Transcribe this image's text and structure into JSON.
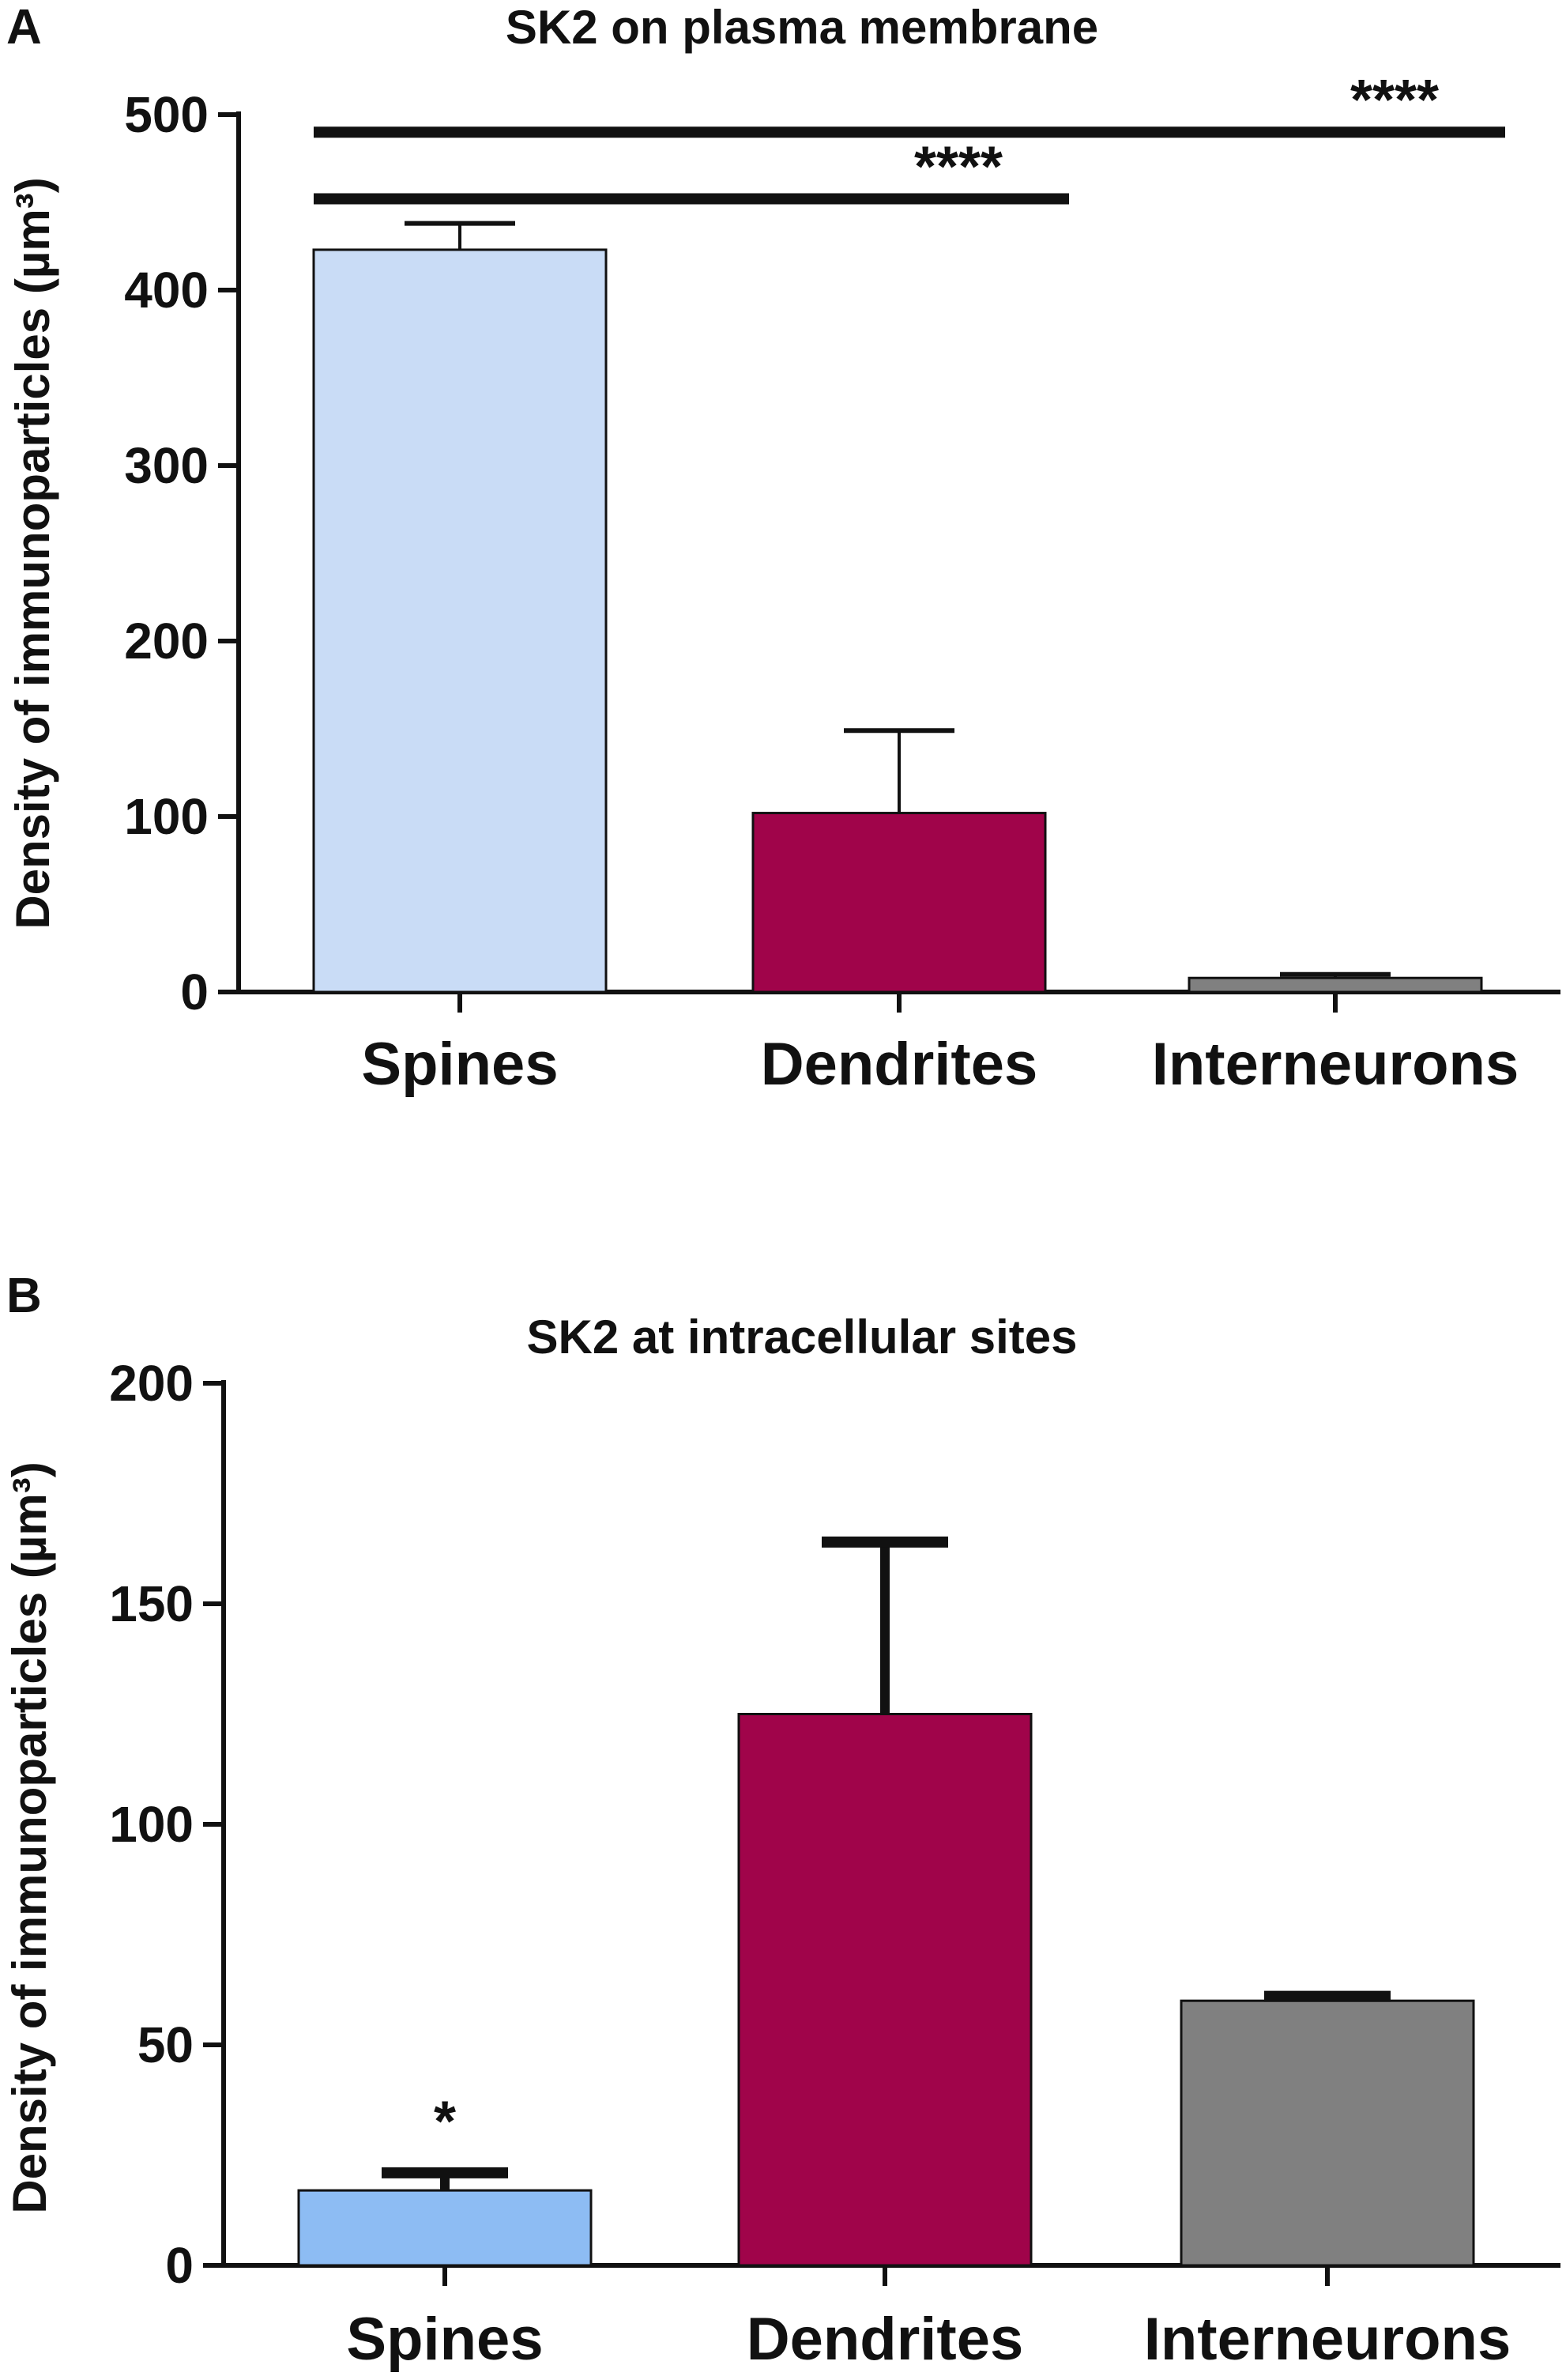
{
  "chart_data": [
    {
      "panel": "A",
      "type": "bar",
      "title": "SK2 on plasma membrane",
      "xlabel": "",
      "ylabel": "Density of immunoparticles (µm³)",
      "categories": [
        "Spines",
        "Dendrites",
        "Interneurons"
      ],
      "values": [
        423,
        102,
        8
      ],
      "errors": [
        15,
        47,
        2
      ],
      "colors": [
        "#c9dcf6",
        "#a0044a",
        "#808080"
      ],
      "ylim": [
        0,
        500
      ],
      "yticks": [
        0,
        100,
        200,
        300,
        400,
        500
      ],
      "significance": [
        {
          "from": 0,
          "to": 1,
          "y": 452,
          "label": "****"
        },
        {
          "from": 0,
          "to": 2,
          "y": 490,
          "label": "****"
        }
      ],
      "grid": false
    },
    {
      "panel": "B",
      "type": "bar",
      "title": "SK2 at intracellular sites",
      "xlabel": "",
      "ylabel": "Density of immunoparticles (µm³)",
      "categories": [
        "Spines",
        "Dendrites",
        "Interneurons"
      ],
      "values": [
        17,
        125,
        60
      ],
      "errors": [
        4,
        39,
        1
      ],
      "colors": [
        "#8dbcf3",
        "#a0044a",
        "#808080"
      ],
      "ylim": [
        0,
        200
      ],
      "yticks": [
        0,
        50,
        100,
        150,
        200
      ],
      "annotations": [
        {
          "category": 0,
          "label": "*",
          "y": 35
        }
      ],
      "grid": false
    }
  ]
}
